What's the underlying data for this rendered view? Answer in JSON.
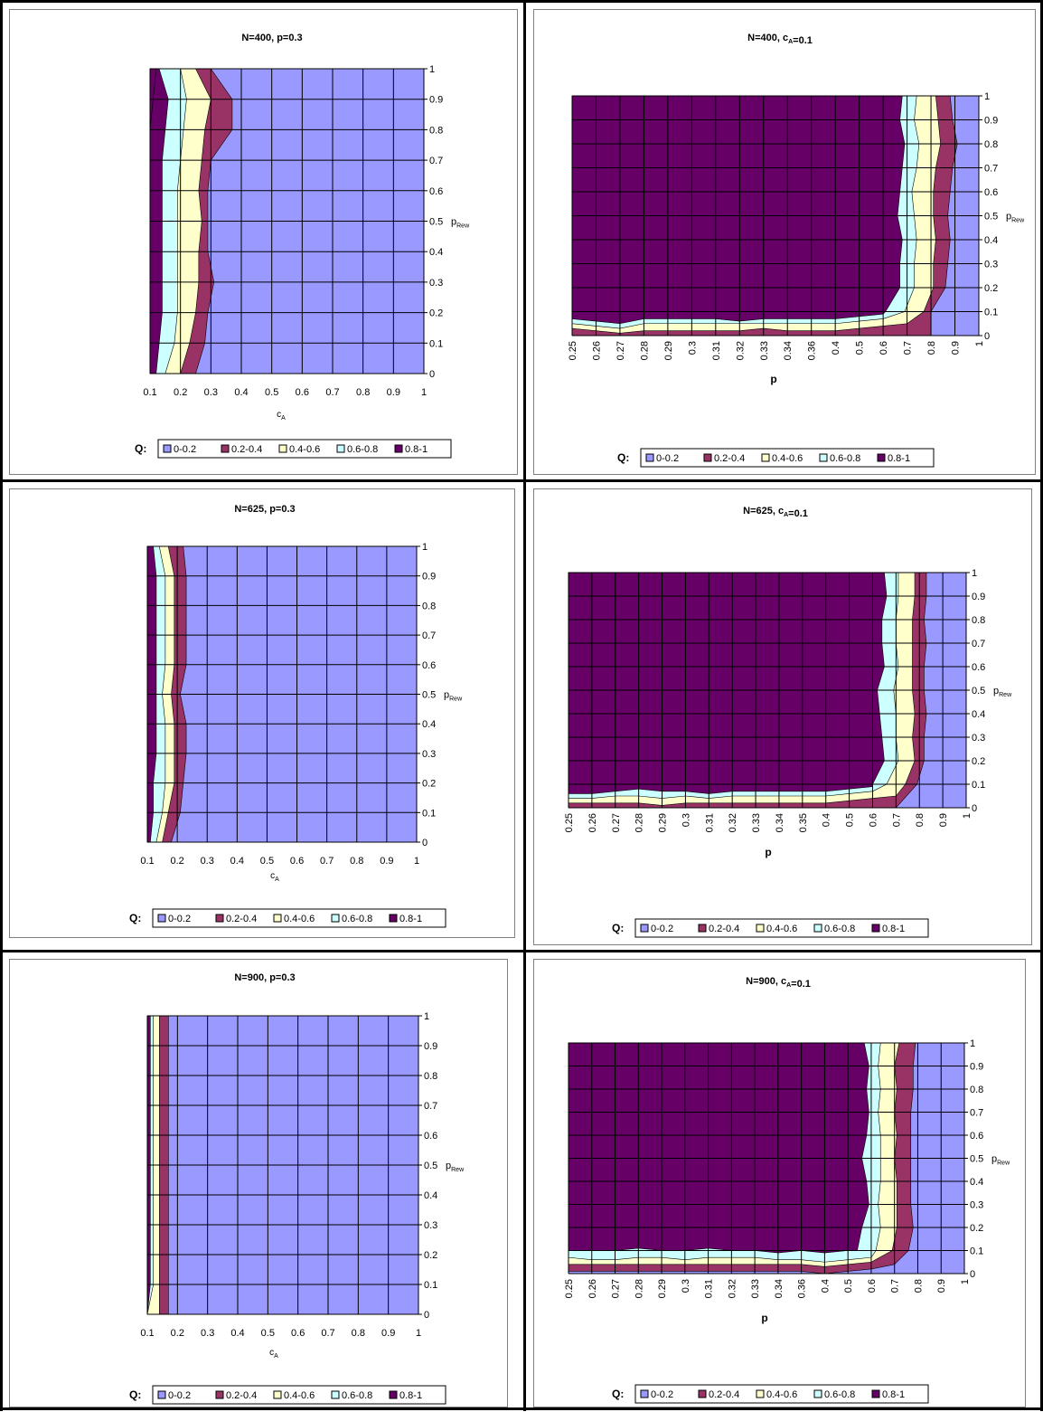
{
  "legend": {
    "prefix": "Q:",
    "items": [
      {
        "label": "0-0.2",
        "color": "#9999ff"
      },
      {
        "label": "0.2-0.4",
        "color": "#993366"
      },
      {
        "label": "0.4-0.6",
        "color": "#ffffcc"
      },
      {
        "label": "0.6-0.8",
        "color": "#ccffff"
      },
      {
        "label": "0.8-1",
        "color": "#660066"
      }
    ]
  },
  "chart_data": [
    {
      "type": "area",
      "title": "N=400, p=0.3",
      "xlabel": "cA",
      "ylabel": "pRew",
      "x_ticks": [
        "0.1",
        "0.2",
        "0.3",
        "0.4",
        "0.5",
        "0.6",
        "0.7",
        "0.8",
        "0.9",
        "1"
      ],
      "y_ticks": [
        "0",
        "0.1",
        "0.2",
        "0.3",
        "0.4",
        "0.5",
        "0.6",
        "0.7",
        "0.8",
        "0.9",
        "1"
      ],
      "ylim": [
        0,
        1
      ],
      "grid": true,
      "legend_position": "bottom",
      "boundaries_note": "Q band boundaries: x value (cA) where each level is crossed, sampled at pRew = 0,0.1,...,1",
      "y_samples": [
        0,
        0.1,
        0.2,
        0.3,
        0.4,
        0.5,
        0.6,
        0.7,
        0.8,
        0.9,
        1
      ],
      "bands": [
        {
          "level": "0.8",
          "x": [
            0.1,
            0.1,
            0.1,
            0.1,
            0.1,
            0.1,
            0.1,
            0.1,
            0.1,
            0.11,
            0.12
          ]
        },
        {
          "level": "0.6",
          "x": [
            0.12,
            0.13,
            0.14,
            0.14,
            0.14,
            0.14,
            0.14,
            0.14,
            0.15,
            0.16,
            0.13
          ]
        },
        {
          "level": "0.4",
          "x": [
            0.15,
            0.18,
            0.19,
            0.19,
            0.19,
            0.19,
            0.19,
            0.2,
            0.21,
            0.22,
            0.2
          ]
        },
        {
          "level": "0.2",
          "x": [
            0.2,
            0.23,
            0.25,
            0.26,
            0.26,
            0.27,
            0.26,
            0.27,
            0.28,
            0.3,
            0.25
          ]
        },
        {
          "level": "0.0",
          "x": [
            0.25,
            0.28,
            0.29,
            0.31,
            0.29,
            0.29,
            0.29,
            0.3,
            0.37,
            0.37,
            0.3
          ]
        }
      ]
    },
    {
      "type": "area",
      "title": "N=400, cA=0.1",
      "xlabel": "p",
      "ylabel": "pRew",
      "x_ticks": [
        "0.25",
        "0.26",
        "0.27",
        "0.28",
        "0.29",
        "0.3",
        "0.31",
        "0.32",
        "0.33",
        "0.34",
        "0.36",
        "0.4",
        "0.5",
        "0.6",
        "0.7",
        "0.8",
        "0.9",
        "1"
      ],
      "y_ticks": [
        "0",
        "0.1",
        "0.2",
        "0.3",
        "0.4",
        "0.5",
        "0.6",
        "0.7",
        "0.8",
        "0.9",
        "1"
      ],
      "ylim": [
        0,
        1
      ],
      "grid": true,
      "legend_position": "bottom",
      "boundaries_note": "Q band boundaries as x-category positions (0 = 0.25, 17 = 1) at pRew = 0.1..1 plus bottom strip heights (pRew) per category",
      "y_samples": [
        0.1,
        0.2,
        0.3,
        0.4,
        0.5,
        0.6,
        0.7,
        0.8,
        0.9,
        1
      ],
      "bands": [
        {
          "level": "0.8",
          "x": [
            12.6,
            12.7,
            12.6,
            12.6,
            12.7,
            12.6,
            12.7,
            12.7,
            12.8,
            12.8
          ],
          "bottom": [
            0.1,
            0.1,
            0.1,
            0.1,
            0.1,
            0.1,
            0.1,
            0.1,
            0.1,
            0.1,
            0.1,
            0.1,
            0.1,
            0.1,
            0.1,
            0.1,
            0.1,
            0.1
          ]
        },
        {
          "level": "0.6",
          "x": [
            13.1,
            13.7,
            13.7,
            13.8,
            13.6,
            13.7,
            13.8,
            13.9,
            13.7,
            13.8
          ],
          "bottom": [
            0.07,
            0.06,
            0.05,
            0.07,
            0.07,
            0.07,
            0.07,
            0.06,
            0.07,
            0.07,
            0.07,
            0.07,
            0.08,
            0.09,
            0.1,
            0.1,
            0.1,
            0.1
          ]
        },
        {
          "level": "0.4",
          "x": [
            13.9,
            14.3,
            14.3,
            14.4,
            14.3,
            14.2,
            14.4,
            14.5,
            14.3,
            14.4
          ],
          "bottom": [
            0.05,
            0.04,
            0.03,
            0.05,
            0.05,
            0.05,
            0.05,
            0.05,
            0.05,
            0.05,
            0.05,
            0.05,
            0.06,
            0.07,
            0.08,
            0.1,
            0.1,
            0.1
          ]
        },
        {
          "level": "0.2",
          "x": [
            14.7,
            15.1,
            15.1,
            15.2,
            15.1,
            15.1,
            15.2,
            15.4,
            15.3,
            15.2
          ],
          "bottom": [
            0.03,
            0.02,
            0.01,
            0.02,
            0.02,
            0.02,
            0.02,
            0.02,
            0.03,
            0.02,
            0.02,
            0.02,
            0.03,
            0.04,
            0.05,
            0.06,
            0.1,
            0.1
          ]
        },
        {
          "level": "0.0",
          "x": [
            15.0,
            15.6,
            15.7,
            15.8,
            15.7,
            15.8,
            15.9,
            16.1,
            15.9,
            15.8
          ],
          "bottom": [
            0.0,
            0.0,
            0.0,
            0.0,
            0.0,
            0.0,
            0.0,
            0.0,
            0.0,
            0.0,
            0.0,
            0.0,
            0.0,
            0.0,
            0.0,
            0.0,
            0.05,
            0.1
          ]
        }
      ]
    },
    {
      "type": "area",
      "title": "N=625, p=0.3",
      "xlabel": "cA",
      "ylabel": "pRew",
      "x_ticks": [
        "0.1",
        "0.2",
        "0.3",
        "0.4",
        "0.5",
        "0.6",
        "0.7",
        "0.8",
        "0.9",
        "1"
      ],
      "y_ticks": [
        "0",
        "0.1",
        "0.2",
        "0.3",
        "0.4",
        "0.5",
        "0.6",
        "0.7",
        "0.8",
        "0.9",
        "1"
      ],
      "ylim": [
        0,
        1
      ],
      "grid": true,
      "legend_position": "bottom",
      "y_samples": [
        0,
        0.1,
        0.2,
        0.3,
        0.4,
        0.5,
        0.6,
        0.7,
        0.8,
        0.9,
        1
      ],
      "bands": [
        {
          "level": "0.8",
          "x": [
            0.1,
            0.1,
            0.1,
            0.1,
            0.1,
            0.1,
            0.1,
            0.1,
            0.1,
            0.1,
            0.1
          ]
        },
        {
          "level": "0.6",
          "x": [
            0.11,
            0.12,
            0.12,
            0.13,
            0.13,
            0.13,
            0.13,
            0.13,
            0.13,
            0.13,
            0.12
          ]
        },
        {
          "level": "0.4",
          "x": [
            0.13,
            0.15,
            0.16,
            0.16,
            0.16,
            0.15,
            0.16,
            0.16,
            0.16,
            0.16,
            0.14
          ]
        },
        {
          "level": "0.2",
          "x": [
            0.15,
            0.17,
            0.19,
            0.19,
            0.19,
            0.18,
            0.19,
            0.19,
            0.19,
            0.19,
            0.17
          ]
        },
        {
          "level": "0.0",
          "x": [
            0.18,
            0.21,
            0.22,
            0.23,
            0.23,
            0.21,
            0.23,
            0.23,
            0.23,
            0.23,
            0.22
          ]
        }
      ]
    },
    {
      "type": "area",
      "title": "N=625, cA=0.1",
      "xlabel": "p",
      "ylabel": "pRew",
      "x_ticks": [
        "0.25",
        "0.26",
        "0.27",
        "0.28",
        "0.29",
        "0.3",
        "0.31",
        "0.32",
        "0.33",
        "0.34",
        "0.35",
        "0.4",
        "0.5",
        "0.6",
        "0.7",
        "0.8",
        "0.9",
        "1"
      ],
      "y_ticks": [
        "0",
        "0.1",
        "0.2",
        "0.3",
        "0.4",
        "0.5",
        "0.6",
        "0.7",
        "0.8",
        "0.9",
        "1"
      ],
      "ylim": [
        0,
        1
      ],
      "grid": true,
      "legend_position": "bottom",
      "y_samples": [
        0.1,
        0.2,
        0.3,
        0.4,
        0.5,
        0.6,
        0.7,
        0.8,
        0.9,
        1
      ],
      "bands": [
        {
          "level": "0.8",
          "x": [
            12.0,
            12.4,
            12.6,
            12.4,
            12.3,
            12.6,
            12.4,
            12.4,
            12.5,
            12.4
          ],
          "bottom": [
            0.1,
            0.1,
            0.1,
            0.11,
            0.1,
            0.1,
            0.1,
            0.1,
            0.1,
            0.1,
            0.1,
            0.1,
            0.1,
            0.1,
            0.1,
            0.1,
            0.1,
            0.1
          ]
        },
        {
          "level": "0.6",
          "x": [
            13.0,
            13.5,
            13.4,
            13.3,
            13.2,
            13.5,
            13.4,
            13.4,
            13.6,
            13.5
          ],
          "bottom": [
            0.06,
            0.06,
            0.07,
            0.08,
            0.07,
            0.07,
            0.06,
            0.07,
            0.07,
            0.07,
            0.07,
            0.07,
            0.08,
            0.09,
            0.1,
            0.1,
            0.1,
            0.1
          ]
        },
        {
          "level": "0.4",
          "x": [
            13.6,
            14.1,
            14.0,
            14.0,
            13.9,
            14.1,
            14.0,
            14.0,
            14.1,
            14.1
          ],
          "bottom": [
            0.04,
            0.04,
            0.05,
            0.05,
            0.04,
            0.05,
            0.04,
            0.05,
            0.05,
            0.05,
            0.05,
            0.05,
            0.06,
            0.07,
            0.08,
            0.1,
            0.1,
            0.1
          ]
        },
        {
          "level": "0.2",
          "x": [
            14.4,
            14.8,
            14.7,
            14.8,
            14.7,
            14.7,
            14.7,
            14.7,
            14.8,
            14.8
          ],
          "bottom": [
            0.02,
            0.02,
            0.02,
            0.02,
            0.01,
            0.02,
            0.02,
            0.02,
            0.02,
            0.02,
            0.02,
            0.02,
            0.03,
            0.04,
            0.05,
            0.07,
            0.1,
            0.1
          ]
        },
        {
          "level": "0.0",
          "x": [
            14.9,
            15.2,
            15.2,
            15.3,
            15.2,
            15.2,
            15.3,
            15.2,
            15.3,
            15.3
          ],
          "bottom": [
            0,
            0,
            0,
            0,
            0,
            0,
            0,
            0,
            0,
            0,
            0,
            0,
            0,
            0,
            0,
            0,
            0.06,
            0.1
          ]
        }
      ]
    },
    {
      "type": "area",
      "title": "N=900, p=0.3",
      "xlabel": "cA",
      "ylabel": "pRew",
      "x_ticks": [
        "0.1",
        "0.2",
        "0.3",
        "0.4",
        "0.5",
        "0.6",
        "0.7",
        "0.8",
        "0.9",
        "1"
      ],
      "y_ticks": [
        "0",
        "0.1",
        "0.2",
        "0.3",
        "0.4",
        "0.5",
        "0.6",
        "0.7",
        "0.8",
        "0.9",
        "1"
      ],
      "ylim": [
        0,
        1
      ],
      "grid": true,
      "legend_position": "bottom",
      "y_samples": [
        0,
        0.1,
        0.2,
        0.3,
        0.4,
        0.5,
        0.6,
        0.7,
        0.8,
        0.9,
        1
      ],
      "bands": [
        {
          "level": "0.8",
          "x": [
            0.1,
            0.1,
            0.1,
            0.1,
            0.1,
            0.1,
            0.1,
            0.1,
            0.1,
            0.1,
            0.1
          ]
        },
        {
          "level": "0.6",
          "x": [
            0.1,
            0.11,
            0.11,
            0.11,
            0.11,
            0.11,
            0.11,
            0.11,
            0.11,
            0.11,
            0.11
          ]
        },
        {
          "level": "0.4",
          "x": [
            0.1,
            0.12,
            0.12,
            0.12,
            0.12,
            0.12,
            0.12,
            0.12,
            0.12,
            0.12,
            0.12
          ]
        },
        {
          "level": "0.2",
          "x": [
            0.14,
            0.14,
            0.14,
            0.14,
            0.14,
            0.14,
            0.14,
            0.14,
            0.14,
            0.14,
            0.14
          ]
        },
        {
          "level": "0.0",
          "x": [
            0.17,
            0.17,
            0.17,
            0.17,
            0.17,
            0.17,
            0.17,
            0.17,
            0.17,
            0.17,
            0.17
          ]
        }
      ]
    },
    {
      "type": "area",
      "title": "N=900, cA=0.1",
      "xlabel": "p",
      "ylabel": "pRew",
      "x_ticks": [
        "0.25",
        "0.26",
        "0.27",
        "0.28",
        "0.29",
        "0.3",
        "0.31",
        "0.32",
        "0.33",
        "0.34",
        "0.36",
        "0.4",
        "0.5",
        "0.6",
        "0.7",
        "0.8",
        "0.9",
        "1"
      ],
      "y_ticks": [
        "0",
        "0.1",
        "0.2",
        "0.3",
        "0.4",
        "0.5",
        "0.6",
        "0.7",
        "0.8",
        "0.9",
        "1"
      ],
      "ylim": [
        0,
        1
      ],
      "grid": true,
      "legend_position": "bottom",
      "y_samples": [
        0.1,
        0.2,
        0.3,
        0.4,
        0.5,
        0.6,
        0.7,
        0.8,
        0.9,
        1
      ],
      "bands": [
        {
          "level": "0.8",
          "x": [
            10.5,
            10.8,
            11.4,
            11.5,
            11.3,
            11.1,
            11.2,
            11.0,
            11.0,
            11.0
          ],
          "bottom": [
            0.18,
            0.16,
            0.16,
            0.16,
            0.15,
            0.14,
            0.16,
            0.15,
            0.16,
            0.16,
            0.17,
            0.2,
            0.28,
            0.3,
            0.3,
            0.3,
            0.3,
            0.3
          ]
        },
        {
          "level": "0.6",
          "x": [
            12.4,
            12.6,
            12.9,
            12.8,
            12.6,
            12.8,
            12.9,
            12.8,
            12.9,
            12.7
          ],
          "bottom": [
            0.1,
            0.1,
            0.1,
            0.11,
            0.1,
            0.1,
            0.11,
            0.1,
            0.1,
            0.09,
            0.1,
            0.09,
            0.1,
            0.1,
            0.1,
            0.1,
            0.1,
            0.1
          ]
        },
        {
          "level": "0.4",
          "x": [
            13.2,
            13.4,
            13.3,
            13.4,
            13.4,
            13.4,
            13.3,
            13.4,
            13.3,
            13.4
          ],
          "bottom": [
            0.07,
            0.06,
            0.06,
            0.07,
            0.07,
            0.06,
            0.07,
            0.07,
            0.07,
            0.06,
            0.06,
            0.05,
            0.06,
            0.07,
            0.09,
            0.1,
            0.1,
            0.1
          ]
        },
        {
          "level": "0.2",
          "x": [
            13.9,
            14.1,
            14.1,
            14.1,
            14.0,
            14.1,
            14.0,
            14.1,
            14.0,
            14.2
          ],
          "bottom": [
            0.04,
            0.04,
            0.04,
            0.04,
            0.04,
            0.04,
            0.04,
            0.04,
            0.04,
            0.04,
            0.04,
            0.03,
            0.04,
            0.05,
            0.07,
            0.1,
            0.1,
            0.1
          ]
        },
        {
          "level": "0.0",
          "x": [
            14.6,
            14.8,
            14.7,
            14.7,
            14.7,
            14.7,
            14.7,
            14.8,
            14.8,
            14.9
          ],
          "bottom": [
            0.01,
            0.01,
            0.01,
            0.01,
            0.01,
            0.01,
            0.01,
            0.01,
            0.01,
            0.01,
            0.01,
            0,
            0.01,
            0.02,
            0.04,
            0.07,
            0.1,
            0.1
          ]
        }
      ]
    }
  ]
}
